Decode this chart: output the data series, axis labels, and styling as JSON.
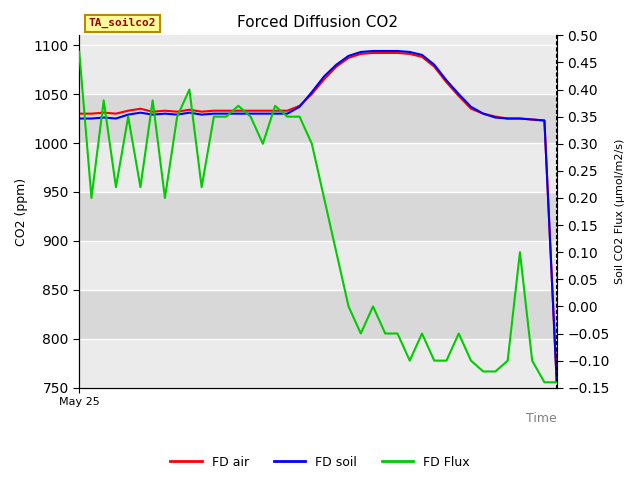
{
  "title": "Forced Diffusion CO2",
  "xlabel": "Time",
  "ylabel_left": "CO2 (ppm)",
  "ylabel_right": "Soil CO2 Flux (μmol/m2/s)",
  "ylim_left": [
    750,
    1110
  ],
  "ylim_right": [
    -0.15,
    0.5
  ],
  "yticks_left": [
    750,
    800,
    850,
    900,
    950,
    1000,
    1050,
    1100
  ],
  "yticks_right": [
    -0.15,
    -0.1,
    -0.05,
    0.0,
    0.05,
    0.1,
    0.15,
    0.2,
    0.25,
    0.3,
    0.35,
    0.4,
    0.45,
    0.5
  ],
  "x_label_start": "May 25",
  "annotation_text": "TA_soilco2",
  "annotation_box_color": "#FFFF99",
  "annotation_box_edge": "#BB8800",
  "bg_color_light": "#EBEBEB",
  "bg_color_dark": "#D8D8D8",
  "grid_color": "#FFFFFF",
  "legend": [
    "FD air",
    "FD soil",
    "FD Flux"
  ],
  "legend_colors": [
    "#FF0000",
    "#0000FF",
    "#00CC00"
  ],
  "n_points": 40,
  "fd_air": [
    1030,
    1030,
    1031,
    1030,
    1033,
    1035,
    1032,
    1033,
    1032,
    1034,
    1032,
    1033,
    1033,
    1033,
    1033,
    1033,
    1033,
    1033,
    1038,
    1050,
    1065,
    1078,
    1087,
    1091,
    1092,
    1092,
    1092,
    1091,
    1088,
    1078,
    1062,
    1048,
    1035,
    1030,
    1027,
    1025,
    1025,
    1024,
    1023,
    757
  ],
  "fd_soil": [
    1025,
    1025,
    1026,
    1025,
    1029,
    1031,
    1029,
    1030,
    1029,
    1031,
    1029,
    1030,
    1030,
    1030,
    1030,
    1030,
    1030,
    1030,
    1037,
    1052,
    1068,
    1080,
    1089,
    1093,
    1094,
    1094,
    1094,
    1093,
    1090,
    1080,
    1064,
    1050,
    1037,
    1030,
    1026,
    1025,
    1025,
    1024,
    1023,
    757
  ],
  "fd_flux": [
    0.47,
    0.2,
    0.38,
    0.22,
    0.35,
    0.22,
    0.38,
    0.2,
    0.35,
    0.4,
    0.22,
    0.35,
    0.35,
    0.37,
    0.35,
    0.3,
    0.37,
    0.35,
    0.35,
    0.3,
    0.2,
    0.1,
    0.0,
    -0.05,
    0.0,
    -0.05,
    -0.05,
    -0.1,
    -0.05,
    -0.1,
    -0.1,
    -0.05,
    -0.1,
    -0.12,
    -0.12,
    -0.1,
    0.1,
    -0.1,
    -0.14,
    -0.14
  ]
}
